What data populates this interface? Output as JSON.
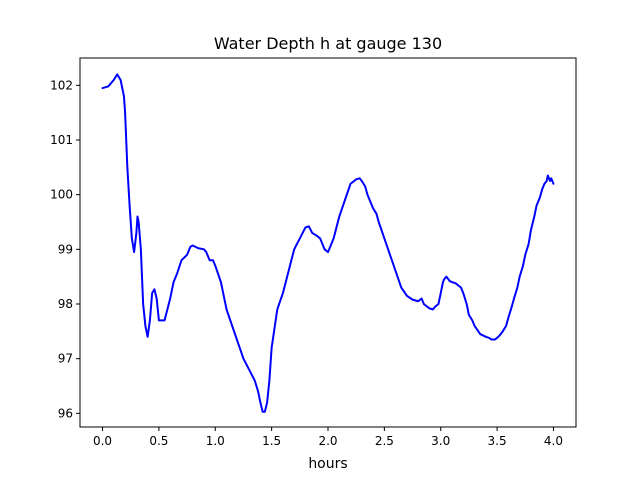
{
  "chart_data": {
    "type": "line",
    "title": "Water Depth h at gauge 130",
    "xlabel": "hours",
    "ylabel": "",
    "xlim": [
      -0.2,
      4.2
    ],
    "ylim": [
      95.75,
      102.5
    ],
    "xticks": [
      0.0,
      0.5,
      1.0,
      1.5,
      2.0,
      2.5,
      3.0,
      3.5,
      4.0
    ],
    "xtick_labels": [
      "0.0",
      "0.5",
      "1.0",
      "1.5",
      "2.0",
      "2.5",
      "3.0",
      "3.5",
      "4.0"
    ],
    "yticks": [
      96,
      97,
      98,
      99,
      100,
      101,
      102
    ],
    "ytick_labels": [
      "96",
      "97",
      "98",
      "99",
      "100",
      "101",
      "102"
    ],
    "grid": false,
    "legend": "none",
    "series": [
      {
        "color": "#0000ff",
        "x": [
          0.0,
          0.05,
          0.1,
          0.13,
          0.16,
          0.19,
          0.2,
          0.21,
          0.22,
          0.24,
          0.26,
          0.28,
          0.3,
          0.31,
          0.32,
          0.34,
          0.36,
          0.38,
          0.4,
          0.42,
          0.44,
          0.46,
          0.48,
          0.5,
          0.52,
          0.55,
          0.6,
          0.63,
          0.66,
          0.7,
          0.75,
          0.78,
          0.8,
          0.85,
          0.9,
          0.92,
          0.95,
          0.98,
          1.0,
          1.05,
          1.1,
          1.15,
          1.2,
          1.25,
          1.3,
          1.35,
          1.38,
          1.4,
          1.42,
          1.44,
          1.46,
          1.48,
          1.5,
          1.55,
          1.6,
          1.65,
          1.7,
          1.75,
          1.8,
          1.83,
          1.86,
          1.9,
          1.93,
          1.95,
          1.97,
          2.0,
          2.05,
          2.1,
          2.15,
          2.2,
          2.25,
          2.28,
          2.3,
          2.33,
          2.35,
          2.38,
          2.4,
          2.43,
          2.45,
          2.5,
          2.55,
          2.6,
          2.65,
          2.7,
          2.75,
          2.8,
          2.83,
          2.85,
          2.88,
          2.9,
          2.93,
          2.95,
          2.98,
          3.0,
          3.02,
          3.03,
          3.05,
          3.08,
          3.1,
          3.13,
          3.15,
          3.18,
          3.2,
          3.23,
          3.25,
          3.28,
          3.3,
          3.35,
          3.4,
          3.43,
          3.45,
          3.48,
          3.5,
          3.52,
          3.55,
          3.58,
          3.6,
          3.63,
          3.65,
          3.68,
          3.7,
          3.73,
          3.75,
          3.78,
          3.8,
          3.83,
          3.85,
          3.88,
          3.9,
          3.92,
          3.94,
          3.95,
          3.96,
          3.97,
          3.98,
          4.0
        ],
        "y": [
          101.95,
          101.98,
          102.1,
          102.2,
          102.1,
          101.8,
          101.5,
          101.0,
          100.5,
          99.8,
          99.2,
          98.95,
          99.3,
          99.6,
          99.5,
          99.0,
          98.0,
          97.6,
          97.4,
          97.7,
          98.2,
          98.27,
          98.1,
          97.7,
          97.7,
          97.7,
          98.1,
          98.4,
          98.55,
          98.8,
          98.9,
          99.05,
          99.07,
          99.02,
          99.0,
          98.95,
          98.8,
          98.8,
          98.7,
          98.4,
          97.9,
          97.6,
          97.3,
          97.0,
          96.8,
          96.6,
          96.4,
          96.2,
          96.03,
          96.03,
          96.2,
          96.6,
          97.2,
          97.9,
          98.2,
          98.6,
          99.0,
          99.2,
          99.4,
          99.42,
          99.3,
          99.25,
          99.2,
          99.1,
          99.0,
          98.95,
          99.2,
          99.6,
          99.9,
          100.2,
          100.28,
          100.3,
          100.25,
          100.15,
          100.0,
          99.85,
          99.75,
          99.65,
          99.5,
          99.2,
          98.9,
          98.6,
          98.3,
          98.15,
          98.08,
          98.05,
          98.1,
          98.0,
          97.95,
          97.92,
          97.9,
          97.95,
          98.0,
          98.2,
          98.4,
          98.45,
          98.5,
          98.42,
          98.4,
          98.38,
          98.35,
          98.3,
          98.2,
          98.0,
          97.8,
          97.7,
          97.6,
          97.45,
          97.4,
          97.38,
          97.35,
          97.35,
          97.38,
          97.42,
          97.5,
          97.6,
          97.75,
          97.95,
          98.1,
          98.3,
          98.5,
          98.7,
          98.9,
          99.1,
          99.35,
          99.6,
          99.8,
          99.95,
          100.1,
          100.2,
          100.25,
          100.35,
          100.3,
          100.25,
          100.3,
          100.2
        ]
      }
    ]
  }
}
